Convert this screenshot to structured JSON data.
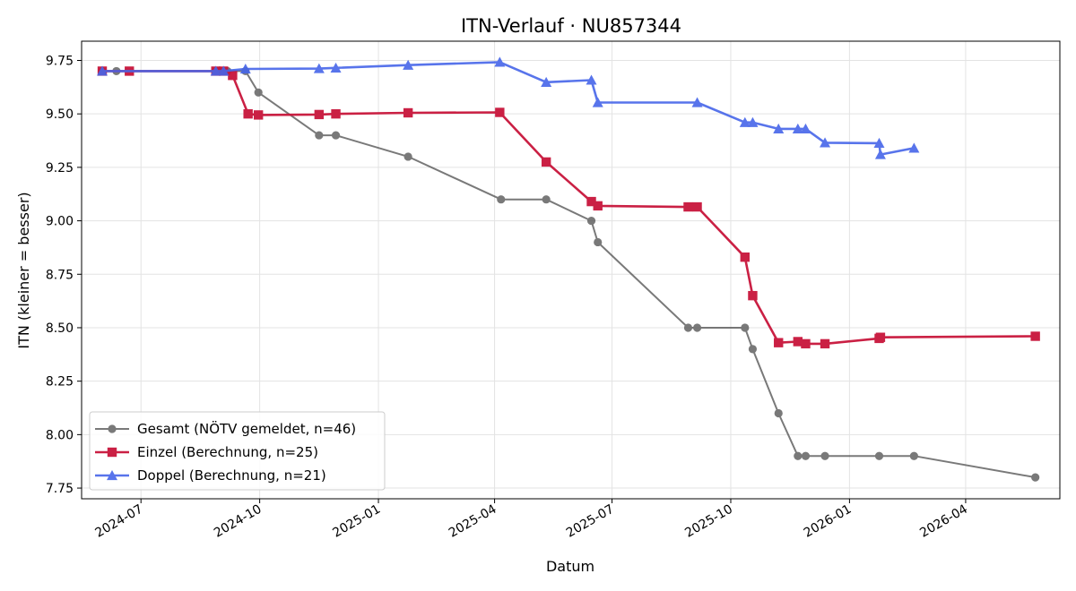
{
  "chart_data": {
    "type": "line",
    "title": "ITN-Verlauf · NU857344",
    "xlabel": "Datum",
    "ylabel": "ITN  (kleiner = besser)",
    "xlim": [
      "2024-05-16",
      "2026-06-13"
    ],
    "ylim": [
      7.7,
      9.84
    ],
    "grid": true,
    "legend_position": "lower-left",
    "x_ticks": [
      {
        "date": "2024-07-01",
        "label": "2024-07"
      },
      {
        "date": "2024-10-01",
        "label": "2024-10"
      },
      {
        "date": "2025-01-01",
        "label": "2025-01"
      },
      {
        "date": "2025-04-01",
        "label": "2025-04"
      },
      {
        "date": "2025-07-01",
        "label": "2025-07"
      },
      {
        "date": "2025-10-01",
        "label": "2025-10"
      },
      {
        "date": "2026-01-01",
        "label": "2026-01"
      },
      {
        "date": "2026-04-01",
        "label": "2026-04"
      }
    ],
    "y_ticks": [
      {
        "value": 7.75,
        "label": "7.75"
      },
      {
        "value": 8.0,
        "label": "8.00"
      },
      {
        "value": 8.25,
        "label": "8.25"
      },
      {
        "value": 8.5,
        "label": "8.50"
      },
      {
        "value": 8.75,
        "label": "8.75"
      },
      {
        "value": 9.0,
        "label": "9.00"
      },
      {
        "value": 9.25,
        "label": "9.25"
      },
      {
        "value": 9.5,
        "label": "9.50"
      },
      {
        "value": 9.75,
        "label": "9.75"
      }
    ],
    "series": [
      {
        "name": "Gesamt (NÖTV gemeldet, n=46)",
        "color": "#4d4d4d",
        "marker": "circle",
        "points": [
          {
            "x": "2024-06-01",
            "y": 9.7
          },
          {
            "x": "2024-06-12",
            "y": 9.7
          },
          {
            "x": "2024-08-28",
            "y": 9.7
          },
          {
            "x": "2024-08-31",
            "y": 9.7
          },
          {
            "x": "2024-09-03",
            "y": 9.7
          },
          {
            "x": "2024-09-06",
            "y": 9.7
          },
          {
            "x": "2024-09-20",
            "y": 9.7
          },
          {
            "x": "2024-09-30",
            "y": 9.6
          },
          {
            "x": "2024-11-16",
            "y": 9.4
          },
          {
            "x": "2024-11-29",
            "y": 9.4
          },
          {
            "x": "2025-01-24",
            "y": 9.3
          },
          {
            "x": "2025-04-06",
            "y": 9.1
          },
          {
            "x": "2025-05-11",
            "y": 9.1
          },
          {
            "x": "2025-06-15",
            "y": 9.0
          },
          {
            "x": "2025-06-20",
            "y": 8.9
          },
          {
            "x": "2025-08-29",
            "y": 8.5
          },
          {
            "x": "2025-09-05",
            "y": 8.5
          },
          {
            "x": "2025-10-12",
            "y": 8.5
          },
          {
            "x": "2025-10-18",
            "y": 8.4
          },
          {
            "x": "2025-11-07",
            "y": 8.1
          },
          {
            "x": "2025-11-22",
            "y": 7.9
          },
          {
            "x": "2025-11-28",
            "y": 7.9
          },
          {
            "x": "2025-12-13",
            "y": 7.9
          },
          {
            "x": "2026-01-24",
            "y": 7.9
          },
          {
            "x": "2026-02-20",
            "y": 7.9
          },
          {
            "x": "2026-05-25",
            "y": 7.8
          }
        ]
      },
      {
        "name": "Einzel (Berechnung, n=25)",
        "color": "#c8153a",
        "marker": "square",
        "points": [
          {
            "x": "2024-06-01",
            "y": 9.7
          },
          {
            "x": "2024-06-22",
            "y": 9.7
          },
          {
            "x": "2024-08-28",
            "y": 9.7
          },
          {
            "x": "2024-09-03",
            "y": 9.7
          },
          {
            "x": "2024-09-10",
            "y": 9.68
          },
          {
            "x": "2024-09-22",
            "y": 9.5
          },
          {
            "x": "2024-09-30",
            "y": 9.495
          },
          {
            "x": "2024-11-16",
            "y": 9.497
          },
          {
            "x": "2024-11-29",
            "y": 9.5
          },
          {
            "x": "2025-01-24",
            "y": 9.505
          },
          {
            "x": "2025-04-05",
            "y": 9.507
          },
          {
            "x": "2025-05-11",
            "y": 9.275
          },
          {
            "x": "2025-06-15",
            "y": 9.09
          },
          {
            "x": "2025-06-20",
            "y": 9.07
          },
          {
            "x": "2025-08-29",
            "y": 9.065
          },
          {
            "x": "2025-09-05",
            "y": 9.065
          },
          {
            "x": "2025-10-12",
            "y": 8.83
          },
          {
            "x": "2025-10-18",
            "y": 8.65
          },
          {
            "x": "2025-11-07",
            "y": 8.43
          },
          {
            "x": "2025-11-22",
            "y": 8.435
          },
          {
            "x": "2025-11-28",
            "y": 8.425
          },
          {
            "x": "2025-12-13",
            "y": 8.425
          },
          {
            "x": "2026-01-24",
            "y": 8.45
          },
          {
            "x": "2026-01-25",
            "y": 8.455
          },
          {
            "x": "2026-05-25",
            "y": 8.46
          }
        ]
      },
      {
        "name": "Doppel (Berechnung, n=21)",
        "color": "#4666e9",
        "marker": "triangle",
        "points": [
          {
            "x": "2024-06-01",
            "y": 9.7
          },
          {
            "x": "2024-08-28",
            "y": 9.7
          },
          {
            "x": "2024-09-03",
            "y": 9.7
          },
          {
            "x": "2024-09-20",
            "y": 9.71
          },
          {
            "x": "2024-11-16",
            "y": 9.712
          },
          {
            "x": "2024-11-29",
            "y": 9.715
          },
          {
            "x": "2025-01-24",
            "y": 9.728
          },
          {
            "x": "2025-04-05",
            "y": 9.742
          },
          {
            "x": "2025-05-11",
            "y": 9.648
          },
          {
            "x": "2025-06-15",
            "y": 9.658
          },
          {
            "x": "2025-06-20",
            "y": 9.553
          },
          {
            "x": "2025-09-05",
            "y": 9.553
          },
          {
            "x": "2025-10-12",
            "y": 9.46
          },
          {
            "x": "2025-10-18",
            "y": 9.46
          },
          {
            "x": "2025-11-07",
            "y": 9.43
          },
          {
            "x": "2025-11-22",
            "y": 9.43
          },
          {
            "x": "2025-11-28",
            "y": 9.43
          },
          {
            "x": "2025-12-13",
            "y": 9.365
          },
          {
            "x": "2026-01-24",
            "y": 9.363
          },
          {
            "x": "2026-01-25",
            "y": 9.31
          },
          {
            "x": "2026-02-20",
            "y": 9.34
          }
        ]
      }
    ]
  }
}
